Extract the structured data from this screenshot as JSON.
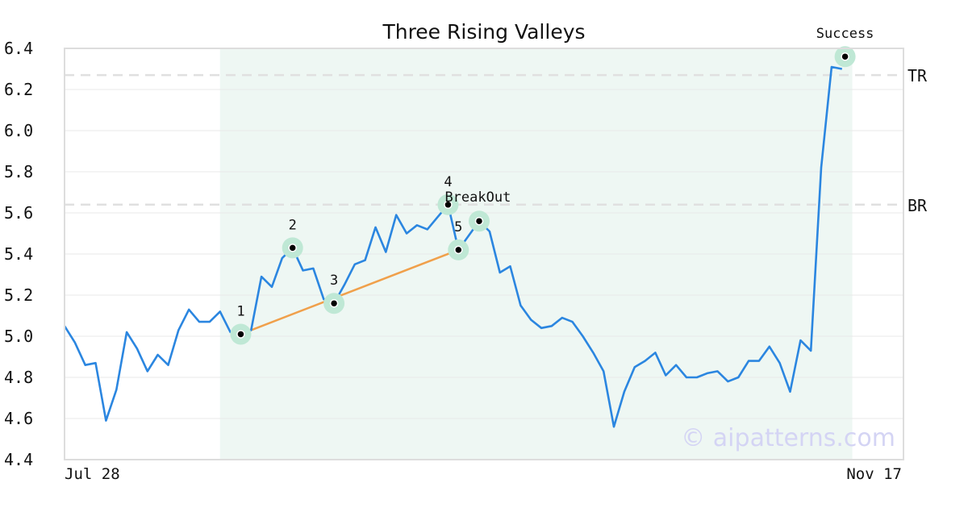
{
  "chart_data": {
    "type": "line",
    "title": "Three Rising Valleys",
    "xlabel": "",
    "ylabel": "",
    "ylim": [
      4.4,
      6.4
    ],
    "yticks": [
      "6.4",
      "6.2",
      "6.0",
      "5.8",
      "5.6",
      "5.4",
      "5.2",
      "5.0",
      "4.8",
      "4.6",
      "4.4"
    ],
    "xtick_labels": [
      "Jul 28",
      "Nov 17"
    ],
    "grid": true,
    "watermark": "© aipatterns.com",
    "colors": {
      "line": "#2b86e0",
      "trend": "#f0a04b",
      "highlight": "#eef7f3",
      "marker_halo": "#bfe8d5",
      "reference": "#e0e0e0",
      "watermark": "#d4d4f4"
    },
    "series": [
      {
        "values": [
          5.05,
          4.97,
          4.86,
          4.87,
          4.59,
          4.74,
          5.02,
          4.94,
          4.83,
          4.91,
          4.86,
          5.03,
          5.13,
          5.07,
          5.07,
          5.12,
          5.02,
          5.01,
          5.03,
          5.29,
          5.24,
          5.38,
          5.43,
          5.32,
          5.33,
          5.18,
          5.16,
          5.25,
          5.35,
          5.37,
          5.53,
          5.41,
          5.59,
          5.5,
          5.54,
          5.52,
          5.58,
          5.64,
          5.42,
          5.49,
          5.56,
          5.51,
          5.31,
          5.34,
          5.15,
          5.08,
          5.04,
          5.05,
          5.09,
          5.07,
          5.0,
          4.92,
          4.83,
          4.56,
          4.73,
          4.85,
          4.88,
          4.92,
          4.81,
          4.86,
          4.8,
          4.8,
          4.82,
          4.83,
          4.78,
          4.8,
          4.88,
          4.88,
          4.95,
          4.87,
          4.73,
          4.98,
          4.93,
          5.82,
          6.31,
          6.3
        ]
      }
    ],
    "highlight_range": [
      15,
      76
    ],
    "reference_lines": [
      {
        "label": "TR",
        "value": 6.27
      },
      {
        "label": "BR",
        "value": 5.64
      }
    ],
    "points": [
      {
        "label": "1",
        "index": 17,
        "value": 5.01
      },
      {
        "label": "2",
        "index": 22,
        "value": 5.43
      },
      {
        "label": "3",
        "index": 26,
        "value": 5.16
      },
      {
        "label": "4",
        "index": 37,
        "value": 5.64
      },
      {
        "label": "5",
        "index": 38,
        "value": 5.42
      },
      {
        "label": "",
        "index": 40,
        "value": 5.56
      },
      {
        "label": "Success",
        "index": 75.3,
        "value": 6.36
      }
    ],
    "annotations": [
      {
        "text": "BreakOut",
        "index": 37,
        "value": 5.64
      }
    ],
    "trendline": {
      "from_index": 17,
      "from_value": 5.01,
      "to_index": 38,
      "to_value": 5.42
    }
  }
}
